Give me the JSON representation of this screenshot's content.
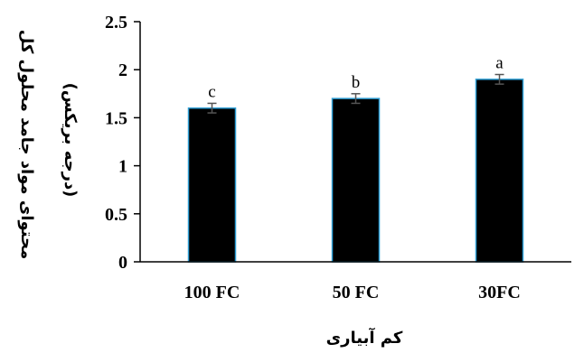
{
  "chart_data": {
    "type": "bar",
    "categories": [
      "100 FC",
      "50 FC",
      "30FC"
    ],
    "values": [
      1.6,
      1.7,
      1.9
    ],
    "errors": [
      0.05,
      0.05,
      0.05
    ],
    "significance_letters": [
      "c",
      "b",
      "a"
    ],
    "xlabel": "کم آبیاری",
    "ylabel_line1": "محتوای مواد جامد محلول کل",
    "ylabel_line2": "(درجه بریکس)",
    "ylim": [
      0,
      2.5
    ],
    "yticks": [
      "0",
      "0.5",
      "1",
      "1.5",
      "2",
      "2.5"
    ],
    "grid": false,
    "colors": {
      "bar_fill": "#000000",
      "bar_edge": "#2e9fd6",
      "axis": "#000000"
    }
  }
}
